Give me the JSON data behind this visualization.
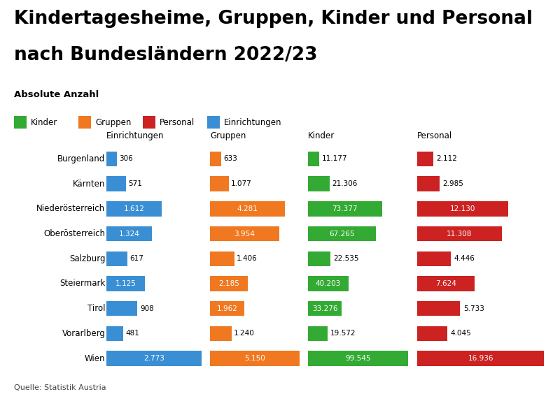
{
  "title_line1": "Kindertagesheime, Gruppen, Kinder und Personal",
  "title_line2": "nach Bundesländern 2022/23",
  "subtitle": "Absolute Anzahl",
  "source": "Quelle: Statistik Austria",
  "bundeslaender": [
    "Burgenland",
    "Kärnten",
    "Niederösterreich",
    "Oberösterreich",
    "Salzburg",
    "Steiermark",
    "Tirol",
    "Vorarlberg",
    "Wien"
  ],
  "einrichtungen": [
    306,
    571,
    1612,
    1324,
    617,
    1125,
    908,
    481,
    2773
  ],
  "gruppen": [
    633,
    1077,
    4281,
    3954,
    1406,
    2185,
    1962,
    1240,
    5150
  ],
  "kinder": [
    11177,
    21306,
    73377,
    67265,
    22535,
    40203,
    33276,
    19572,
    99545
  ],
  "personal": [
    2112,
    2985,
    12130,
    11308,
    4446,
    7624,
    5733,
    4045,
    16936
  ],
  "einrichtungen_labels": [
    "306",
    "571",
    "1.612",
    "1.324",
    "617",
    "1.125",
    "908",
    "481",
    "2.773"
  ],
  "gruppen_labels": [
    "633",
    "1.077",
    "4.281",
    "3.954",
    "1.406",
    "2.185",
    "1.962",
    "1.240",
    "5.150"
  ],
  "kinder_labels": [
    "11.177",
    "21.306",
    "73.377",
    "67.265",
    "22.535",
    "40.203",
    "33.276",
    "19.572",
    "99.545"
  ],
  "personal_labels": [
    "2.112",
    "2.985",
    "12.130",
    "11.308",
    "4.446",
    "7.624",
    "5.733",
    "4.045",
    "16.936"
  ],
  "color_kinder": "#33aa33",
  "color_gruppen": "#f07820",
  "color_personal": "#cc2222",
  "color_einrichtungen": "#3a8fd4",
  "background_color": "#ffffff",
  "col_headers": [
    "Einrichtungen",
    "Gruppen",
    "Kinder",
    "Personal"
  ],
  "legend_labels": [
    "Kinder",
    "Gruppen",
    "Personal",
    "Einrichtungen"
  ],
  "legend_colors": [
    "#33aa33",
    "#f07820",
    "#cc2222",
    "#3a8fd4"
  ],
  "maxvals": [
    2773,
    5150,
    99545,
    16936
  ],
  "label_thresholds": [
    0.38,
    0.32,
    0.32,
    0.4
  ]
}
